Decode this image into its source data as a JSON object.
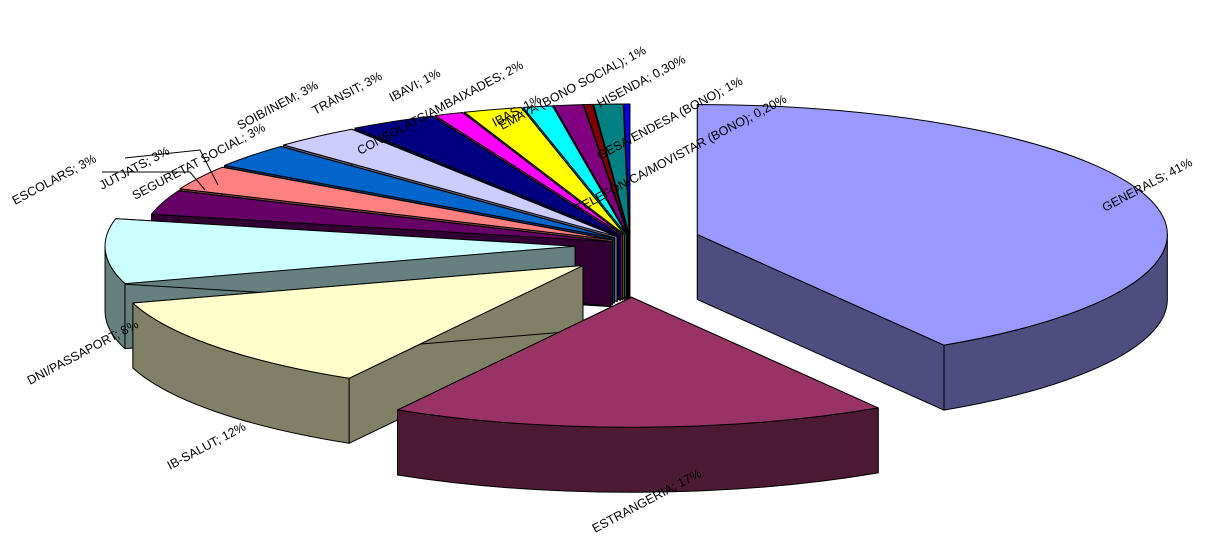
{
  "chart_data": {
    "type": "pie",
    "style": "3d-exploded",
    "title": "",
    "slices": [
      {
        "label": "GENERALS; 41%",
        "category": "GENERALS",
        "value": 41,
        "color": "#9999ff",
        "side_color": "#4d4d80"
      },
      {
        "label": "ESTRANGERIA; 17%",
        "category": "ESTRANGERIA",
        "value": 17,
        "color": "#993366",
        "side_color": "#4d1a33"
      },
      {
        "label": "IB-SALUT; 12%",
        "category": "IB-SALUT",
        "value": 12,
        "color": "#ffffcc",
        "side_color": "#808066"
      },
      {
        "label": "DNI/PASSAPORT; 8%",
        "category": "DNI/PASSAPORT",
        "value": 8,
        "color": "#ccffff",
        "side_color": "#668080"
      },
      {
        "label": "ESCOLARS; 3%",
        "category": "ESCOLARS",
        "value": 3,
        "color": "#660066",
        "side_color": "#330033"
      },
      {
        "label": "JUTJATS; 3%",
        "category": "JUTJATS",
        "value": 3,
        "color": "#ff8080",
        "side_color": "#804040"
      },
      {
        "label": "SEGURETAT SOCIAL; 3%",
        "category": "SEGURETAT SOCIAL",
        "value": 3,
        "color": "#0066cc",
        "side_color": "#003366"
      },
      {
        "label": "SOIB/INEM; 3%",
        "category": "SOIB/INEM",
        "value": 3,
        "color": "#ccccff",
        "side_color": "#666680"
      },
      {
        "label": "TRÀNSIT; 3%",
        "category": "TRÀNSIT",
        "value": 3,
        "color": "#000080",
        "side_color": "#000040"
      },
      {
        "label": "IBAVI; 1%",
        "category": "IBAVI",
        "value": 1,
        "color": "#ff00ff",
        "side_color": "#800080"
      },
      {
        "label": "CONSOLATS/AMBAIXADES; 2%",
        "category": "CONSOLATS/AMBAIXADES",
        "value": 2,
        "color": "#ffff00",
        "side_color": "#808000"
      },
      {
        "label": "IBAS; 1%",
        "category": "IBAS",
        "value": 1,
        "color": "#00ffff",
        "side_color": "#008080"
      },
      {
        "label": "EMAYA (BONO SOCIAL); 1%",
        "category": "EMAYA (BONO SOCIAL)",
        "value": 1,
        "color": "#800080",
        "side_color": "#400040"
      },
      {
        "label": "HISENDA; 0,30%",
        "category": "HISENDA",
        "value": 0.3,
        "color": "#800000",
        "side_color": "#400000"
      },
      {
        "label": "GESA/ENDESA  (BONO); 1%",
        "category": "GESA/ENDESA  (BONO)",
        "value": 1,
        "color": "#008080",
        "side_color": "#004040"
      },
      {
        "label": "TELEFÓNICA/MOVISTAR (BONO); 0,20%",
        "category": "TELEFÓNICA/MOVISTAR (BONO)",
        "value": 0.2,
        "color": "#0000ff",
        "side_color": "#000080"
      }
    ],
    "legend": "none"
  }
}
